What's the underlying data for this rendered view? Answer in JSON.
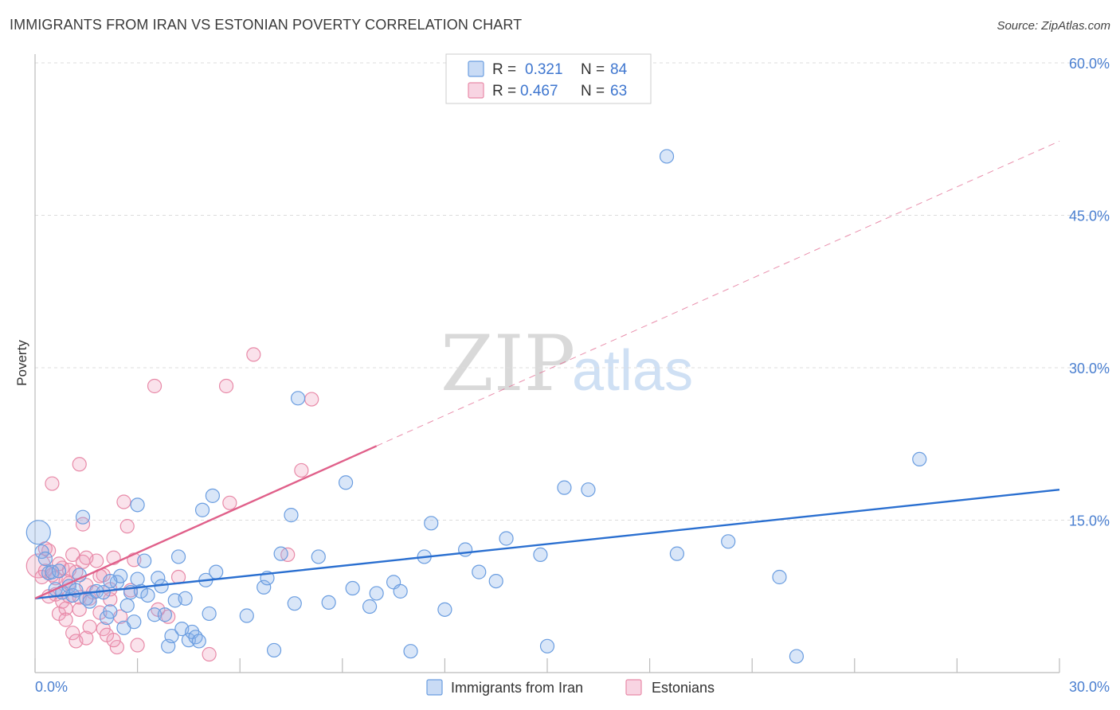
{
  "title": "IMMIGRANTS FROM IRAN VS ESTONIAN POVERTY CORRELATION CHART",
  "source": "Source: ZipAtlas.com",
  "watermark": {
    "left": "ZIP",
    "right": "atlas"
  },
  "colors": {
    "blue": "#6a9de0",
    "blue_fill": "rgba(136,176,232,0.32)",
    "blue_line": "#2a6fd0",
    "pink": "#e88aa8",
    "pink_fill": "rgba(240,160,190,0.30)",
    "pink_line": "#e0608a",
    "grid": "#dddddd",
    "tick_label": "#4a7fd0"
  },
  "legend": {
    "r_label": "R =",
    "n_label": "N =",
    "entries": [
      {
        "r": "0.321",
        "n": "84"
      },
      {
        "r": "0.467",
        "n": "63"
      }
    ]
  },
  "bottom_legend": [
    "Immigrants from Iran",
    "Estonians"
  ],
  "chart_data": {
    "type": "scatter",
    "title": "IMMIGRANTS FROM IRAN VS ESTONIAN POVERTY CORRELATION CHART",
    "xlabel": "",
    "ylabel": "Poverty",
    "xlim": [
      0,
      30
    ],
    "ylim": [
      0,
      60
    ],
    "x_tick_labels": [
      "0.0%",
      "30.0%"
    ],
    "y_ticks": [
      15,
      30,
      45,
      60
    ],
    "y_tick_labels": [
      "15.0%",
      "30.0%",
      "45.0%",
      "60.0%"
    ],
    "grid": "horizontal dashed",
    "legend_position": "top-center",
    "series": [
      {
        "name": "Immigrants from Iran",
        "r": 0.321,
        "n": 84,
        "trend": {
          "x": [
            0,
            30
          ],
          "y": [
            7.3,
            18.0
          ],
          "style": "solid"
        },
        "points": [
          [
            0.1,
            13.8
          ],
          [
            0.2,
            11.9
          ],
          [
            0.3,
            11.2
          ],
          [
            0.4,
            9.8
          ],
          [
            0.5,
            9.9
          ],
          [
            0.6,
            8.2
          ],
          [
            0.7,
            10.0
          ],
          [
            0.8,
            7.9
          ],
          [
            1.0,
            8.5
          ],
          [
            1.1,
            7.6
          ],
          [
            1.2,
            8.1
          ],
          [
            1.4,
            15.3
          ],
          [
            1.5,
            7.3
          ],
          [
            1.6,
            7.0
          ],
          [
            1.8,
            8.0
          ],
          [
            2.0,
            7.9
          ],
          [
            2.1,
            5.4
          ],
          [
            2.2,
            6.0
          ],
          [
            2.4,
            8.9
          ],
          [
            2.5,
            9.5
          ],
          [
            2.6,
            4.4
          ],
          [
            2.7,
            6.6
          ],
          [
            2.8,
            7.9
          ],
          [
            2.9,
            5.0
          ],
          [
            3.0,
            16.5
          ],
          [
            3.1,
            8.0
          ],
          [
            3.2,
            11.0
          ],
          [
            3.3,
            7.6
          ],
          [
            3.5,
            5.7
          ],
          [
            3.6,
            9.3
          ],
          [
            3.7,
            8.5
          ],
          [
            3.8,
            5.7
          ],
          [
            3.9,
            2.6
          ],
          [
            4.0,
            3.6
          ],
          [
            4.1,
            7.1
          ],
          [
            4.2,
            11.4
          ],
          [
            4.3,
            4.3
          ],
          [
            4.4,
            7.3
          ],
          [
            4.5,
            3.2
          ],
          [
            4.6,
            4.0
          ],
          [
            4.7,
            3.5
          ],
          [
            4.8,
            3.1
          ],
          [
            4.9,
            16.0
          ],
          [
            5.0,
            9.1
          ],
          [
            5.1,
            5.8
          ],
          [
            5.2,
            17.4
          ],
          [
            5.3,
            9.9
          ],
          [
            6.2,
            5.6
          ],
          [
            6.7,
            8.4
          ],
          [
            6.8,
            9.3
          ],
          [
            7.0,
            2.2
          ],
          [
            7.2,
            11.7
          ],
          [
            7.5,
            15.5
          ],
          [
            7.6,
            6.8
          ],
          [
            7.7,
            27.0
          ],
          [
            8.3,
            11.4
          ],
          [
            8.6,
            6.9
          ],
          [
            9.3,
            8.3
          ],
          [
            9.1,
            18.7
          ],
          [
            9.8,
            6.5
          ],
          [
            10.0,
            7.8
          ],
          [
            10.5,
            8.9
          ],
          [
            10.7,
            8.0
          ],
          [
            11.0,
            2.1
          ],
          [
            11.4,
            11.4
          ],
          [
            11.6,
            14.7
          ],
          [
            12.0,
            6.2
          ],
          [
            12.6,
            12.1
          ],
          [
            13.0,
            9.9
          ],
          [
            13.5,
            9.0
          ],
          [
            13.8,
            13.2
          ],
          [
            14.8,
            11.6
          ],
          [
            15.0,
            2.6
          ],
          [
            15.5,
            18.2
          ],
          [
            16.2,
            18.0
          ],
          [
            18.5,
            50.8
          ],
          [
            18.8,
            11.7
          ],
          [
            20.3,
            12.9
          ],
          [
            21.8,
            9.4
          ],
          [
            22.3,
            1.6
          ],
          [
            25.9,
            21.0
          ],
          [
            3.0,
            9.2
          ],
          [
            2.2,
            9.0
          ],
          [
            1.3,
            9.6
          ]
        ]
      },
      {
        "name": "Estonians",
        "r": 0.467,
        "n": 63,
        "trend": {
          "x": [
            0,
            30
          ],
          "y": [
            7.3,
            52.3
          ],
          "solid_until_x": 10,
          "style": "solid then dashed"
        },
        "points": [
          [
            0.1,
            10.5
          ],
          [
            0.2,
            9.4
          ],
          [
            0.3,
            10.0
          ],
          [
            0.4,
            12.0
          ],
          [
            0.5,
            9.6
          ],
          [
            0.5,
            18.6
          ],
          [
            0.6,
            7.7
          ],
          [
            0.7,
            5.8
          ],
          [
            0.8,
            10.3
          ],
          [
            0.8,
            7.0
          ],
          [
            0.9,
            6.3
          ],
          [
            0.9,
            5.2
          ],
          [
            1.0,
            8.8
          ],
          [
            1.0,
            7.5
          ],
          [
            1.1,
            3.9
          ],
          [
            1.1,
            11.6
          ],
          [
            1.2,
            3.1
          ],
          [
            1.2,
            9.9
          ],
          [
            1.3,
            20.5
          ],
          [
            1.3,
            7.4
          ],
          [
            1.4,
            14.6
          ],
          [
            1.4,
            10.9
          ],
          [
            1.5,
            3.4
          ],
          [
            1.5,
            8.6
          ],
          [
            1.6,
            4.5
          ],
          [
            1.6,
            7.3
          ],
          [
            1.7,
            7.9
          ],
          [
            1.8,
            11.0
          ],
          [
            1.9,
            5.9
          ],
          [
            2.0,
            9.6
          ],
          [
            2.0,
            4.3
          ],
          [
            2.1,
            3.7
          ],
          [
            2.2,
            7.2
          ],
          [
            2.3,
            11.3
          ],
          [
            2.4,
            2.5
          ],
          [
            2.5,
            5.5
          ],
          [
            2.6,
            16.8
          ],
          [
            2.7,
            14.4
          ],
          [
            2.8,
            8.1
          ],
          [
            2.9,
            11.1
          ],
          [
            3.0,
            2.7
          ],
          [
            3.5,
            28.2
          ],
          [
            3.6,
            6.2
          ],
          [
            3.9,
            5.5
          ],
          [
            4.2,
            9.4
          ],
          [
            5.1,
            1.8
          ],
          [
            5.6,
            28.2
          ],
          [
            5.7,
            16.7
          ],
          [
            6.4,
            31.3
          ],
          [
            7.4,
            11.6
          ],
          [
            7.8,
            19.9
          ],
          [
            8.1,
            26.9
          ],
          [
            0.3,
            12.2
          ],
          [
            0.6,
            9.3
          ],
          [
            1.0,
            10.1
          ],
          [
            1.9,
            9.5
          ],
          [
            2.2,
            8.2
          ],
          [
            0.4,
            7.5
          ],
          [
            0.7,
            10.7
          ],
          [
            1.3,
            6.2
          ],
          [
            1.5,
            11.3
          ],
          [
            2.3,
            3.2
          ],
          [
            0.9,
            9.0
          ]
        ]
      }
    ]
  }
}
